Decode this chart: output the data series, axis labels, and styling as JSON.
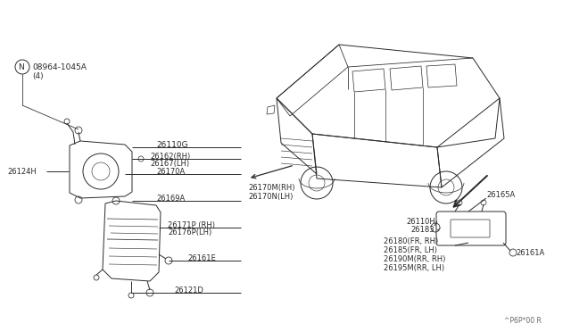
{
  "bg_color": "#ffffff",
  "line_color": "#2a2a2a",
  "text_color": "#2a2a2a",
  "fig_width": 6.4,
  "fig_height": 3.72,
  "dpi": 100,
  "watermark": "^P6P*00 R",
  "labels": {
    "nut_label": "08964-1045A",
    "nut_qty": "(4)",
    "l26110G": "26110G",
    "l26162": "26162(RH)",
    "l26167": "26167(LH)",
    "l26170A": "26170A",
    "l26169A": "26169A",
    "l26171P": "26171P (RH)",
    "l26176P": "26176P(LH)",
    "l26161E": "26161E",
    "l26121D": "26121D",
    "l26124H": "26124H",
    "l26170M": "26170M(RH)",
    "l26170N": "26170N(LH)",
    "l26165A": "26165A",
    "l26110H": "26110H",
    "l26183": "26183",
    "l26180": "26180(FR, RH)",
    "l26185": "26185(FR, LH)",
    "l26190M": "26190M(RR, RH)",
    "l26195M": "26195M(RR, LH)",
    "l26161A": "26161A"
  }
}
